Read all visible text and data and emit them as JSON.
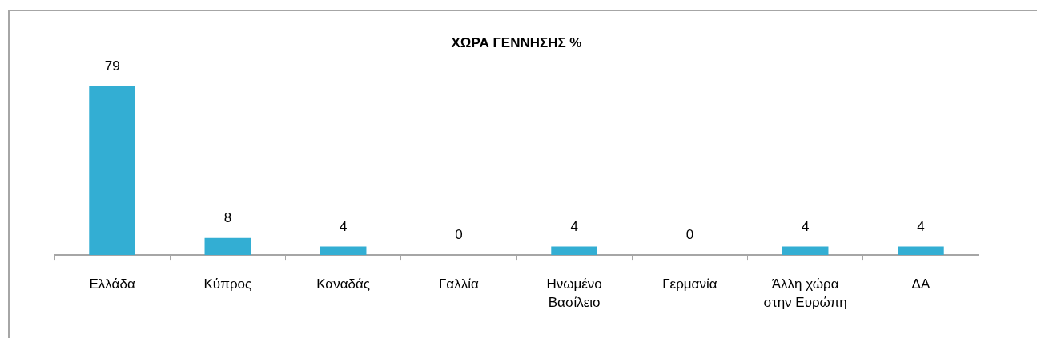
{
  "chart_data": {
    "type": "bar",
    "title": "ΧΩΡΑ ΓΕΝΝΗΣΗΣ %",
    "categories": [
      "Ελλάδα",
      "Κύπρος",
      "Καναδάς",
      "Γαλλία",
      "Ηνωμένο Βασίλειο",
      "Γερμανία",
      "Άλλη χώρα στην Ευρώπη",
      "ΔΑ"
    ],
    "values": [
      79,
      8,
      4,
      0,
      4,
      0,
      4,
      4
    ],
    "color": "#33aed3",
    "data_labels": true
  }
}
